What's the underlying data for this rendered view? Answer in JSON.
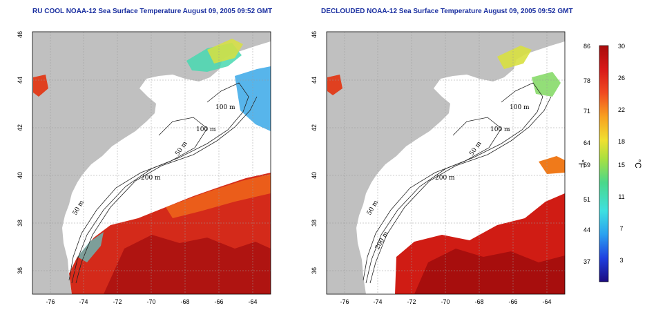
{
  "panels": [
    {
      "title": "RU COOL NOAA-12 Sea Surface Temperature August 09, 2005 09:52 GMT",
      "contour_labels": [
        "100 m",
        "100 m",
        "50 m",
        "200 m",
        "50 m"
      ]
    },
    {
      "title": "DECLOUDED NOAA-12 Sea Surface Temperature August 09, 2005 09:52 GMT",
      "contour_labels": [
        "100 m",
        "100 m",
        "50 m",
        "200 m",
        "50 m",
        "200 m"
      ]
    }
  ],
  "axes": {
    "x_ticks": [
      "-76",
      "-74",
      "-72",
      "-70",
      "-68",
      "-66",
      "-64"
    ],
    "y_ticks": [
      "46",
      "44",
      "42",
      "40",
      "38",
      "36"
    ],
    "x_range": [
      -77,
      -63
    ],
    "y_range": [
      35,
      46
    ]
  },
  "colorbar": {
    "celsius_label": "°C",
    "fahrenheit_label": "°F",
    "celsius_ticks": [
      "30",
      "26",
      "22",
      "18",
      "15",
      "11",
      "7",
      "3"
    ],
    "fahrenheit_ticks": [
      "86",
      "78",
      "71",
      "64",
      "59",
      "51",
      "44",
      "37"
    ],
    "colors": [
      "#1b0b80",
      "#1f3fe0",
      "#2aa0f0",
      "#3ee0e0",
      "#4ad88a",
      "#a8e040",
      "#f0e030",
      "#f8a020",
      "#f04a20",
      "#d81818",
      "#a80c0c"
    ]
  },
  "colors": {
    "land": "#c0c0c0",
    "ocean_nodata": "#ffffff",
    "grid": "#9a9a9a"
  }
}
